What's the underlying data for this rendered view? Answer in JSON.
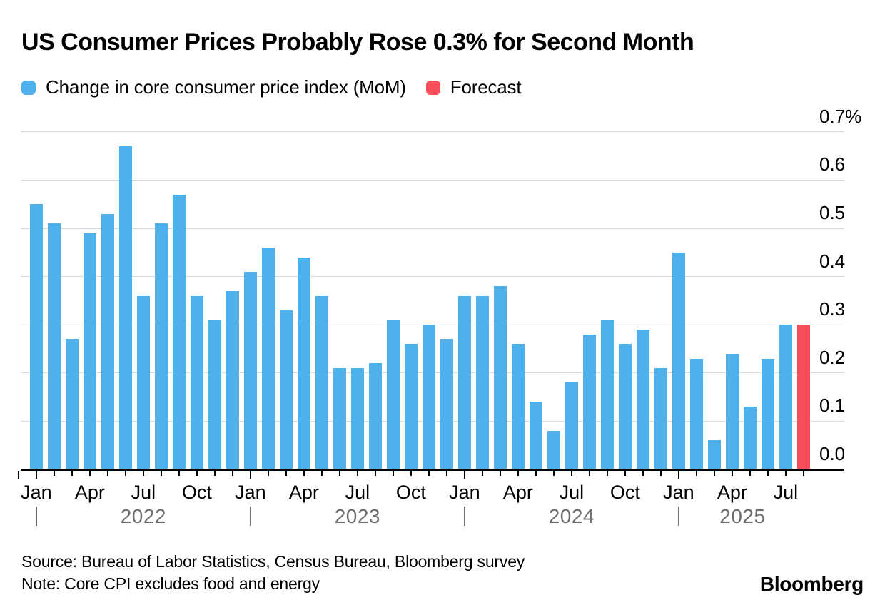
{
  "header": {
    "title": "US Consumer Prices Probably Rose 0.3% for Second Month"
  },
  "legend": {
    "series_label": "Change in core consumer price index (MoM)",
    "forecast_label": "Forecast"
  },
  "footer": {
    "source": "Source: Bureau of Labor Statistics, Census Bureau, Bloomberg survey",
    "note": "Note: Core CPI excludes food and energy",
    "brand": "Bloomberg"
  },
  "colors": {
    "bar_blue": "#4FB1EC",
    "forecast_red": "#FA4D5A",
    "gridline": "#DADADA",
    "axis": "#000000",
    "muted_text": "#6E6E6E"
  },
  "y_axis": {
    "ticks": [
      {
        "value": 0.7,
        "label": "0.7%"
      },
      {
        "value": 0.6,
        "label": "0.6"
      },
      {
        "value": 0.5,
        "label": "0.5"
      },
      {
        "value": 0.4,
        "label": "0.4"
      },
      {
        "value": 0.3,
        "label": "0.3"
      },
      {
        "value": 0.2,
        "label": "0.2"
      },
      {
        "value": 0.1,
        "label": "0.1"
      },
      {
        "value": 0.0,
        "label": "0.0"
      }
    ]
  },
  "x_axis": {
    "month_labels": [
      {
        "index": 0,
        "label": "Jan"
      },
      {
        "index": 3,
        "label": "Apr"
      },
      {
        "index": 6,
        "label": "Jul"
      },
      {
        "index": 9,
        "label": "Oct"
      },
      {
        "index": 12,
        "label": "Jan"
      },
      {
        "index": 15,
        "label": "Apr"
      },
      {
        "index": 18,
        "label": "Jul"
      },
      {
        "index": 21,
        "label": "Oct"
      },
      {
        "index": 24,
        "label": "Jan"
      },
      {
        "index": 27,
        "label": "Apr"
      },
      {
        "index": 30,
        "label": "Jul"
      },
      {
        "index": 33,
        "label": "Oct"
      },
      {
        "index": 36,
        "label": "Jan"
      },
      {
        "index": 39,
        "label": "Apr"
      },
      {
        "index": 42,
        "label": "Jul"
      }
    ],
    "years": [
      {
        "label": "2022",
        "start_index": 0
      },
      {
        "label": "2023",
        "start_index": 12
      },
      {
        "label": "2024",
        "start_index": 24
      },
      {
        "label": "2025",
        "start_index": 36
      }
    ]
  },
  "chart_data": {
    "type": "bar",
    "title": "US Consumer Prices Probably Rose 0.3% for Second Month",
    "ylabel": "Change in core consumer price index (MoM), %",
    "ylim": [
      0,
      0.7
    ],
    "grid": "horizontal",
    "legend_position": "top",
    "categories": [
      "Jan 2022",
      "Feb 2022",
      "Mar 2022",
      "Apr 2022",
      "May 2022",
      "Jun 2022",
      "Jul 2022",
      "Aug 2022",
      "Sep 2022",
      "Oct 2022",
      "Nov 2022",
      "Dec 2022",
      "Jan 2023",
      "Feb 2023",
      "Mar 2023",
      "Apr 2023",
      "May 2023",
      "Jun 2023",
      "Jul 2023",
      "Aug 2023",
      "Sep 2023",
      "Oct 2023",
      "Nov 2023",
      "Dec 2023",
      "Jan 2024",
      "Feb 2024",
      "Mar 2024",
      "Apr 2024",
      "May 2024",
      "Jun 2024",
      "Jul 2024",
      "Aug 2024",
      "Sep 2024",
      "Oct 2024",
      "Nov 2024",
      "Dec 2024",
      "Jan 2025",
      "Feb 2025",
      "Mar 2025",
      "Apr 2025",
      "May 2025",
      "Jun 2025",
      "Jul 2025",
      "Aug 2025"
    ],
    "series": [
      {
        "name": "Change in core consumer price index (MoM)",
        "color": "#4FB1EC",
        "values": [
          0.55,
          0.51,
          0.27,
          0.49,
          0.53,
          0.67,
          0.36,
          0.51,
          0.57,
          0.36,
          0.31,
          0.37,
          0.41,
          0.46,
          0.33,
          0.44,
          0.36,
          0.21,
          0.21,
          0.22,
          0.31,
          0.26,
          0.3,
          0.27,
          0.36,
          0.36,
          0.38,
          0.26,
          0.14,
          0.08,
          0.18,
          0.28,
          0.31,
          0.26,
          0.29,
          0.21,
          0.45,
          0.23,
          0.06,
          0.24,
          0.13,
          0.23,
          0.3,
          null
        ]
      },
      {
        "name": "Forecast",
        "color": "#FA4D5A",
        "values": [
          null,
          null,
          null,
          null,
          null,
          null,
          null,
          null,
          null,
          null,
          null,
          null,
          null,
          null,
          null,
          null,
          null,
          null,
          null,
          null,
          null,
          null,
          null,
          null,
          null,
          null,
          null,
          null,
          null,
          null,
          null,
          null,
          null,
          null,
          null,
          null,
          null,
          null,
          null,
          null,
          null,
          null,
          null,
          0.3
        ]
      }
    ]
  }
}
